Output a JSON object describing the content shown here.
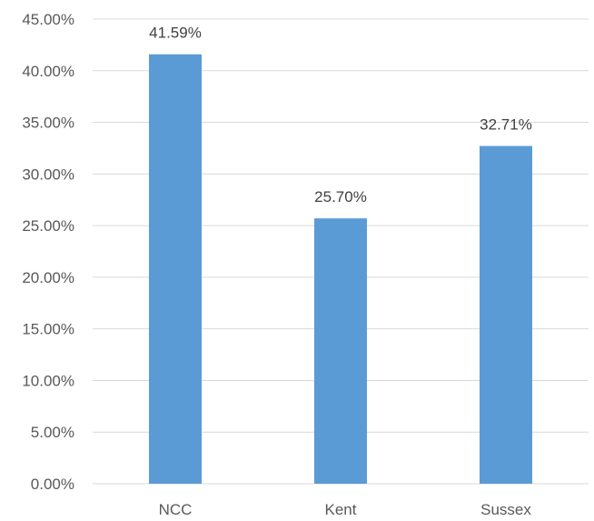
{
  "chart_data": {
    "type": "bar",
    "categories": [
      "NCC",
      "Kent",
      "Sussex"
    ],
    "values": [
      41.59,
      25.7,
      32.71
    ],
    "data_labels": [
      "41.59%",
      "25.70%",
      "32.71%"
    ],
    "ylim": [
      0,
      45
    ],
    "yticks": [
      0,
      5,
      10,
      15,
      20,
      25,
      30,
      35,
      40,
      45
    ],
    "ytick_labels": [
      "0.00%",
      "5.00%",
      "10.00%",
      "15.00%",
      "20.00%",
      "25.00%",
      "30.00%",
      "35.00%",
      "40.00%",
      "45.00%"
    ],
    "title": "",
    "xlabel": "",
    "ylabel": "",
    "grid": true,
    "legend": "none",
    "colors": {
      "bar": "#5b9bd5",
      "grid": "#d9d9d9",
      "text": "#595959"
    }
  }
}
